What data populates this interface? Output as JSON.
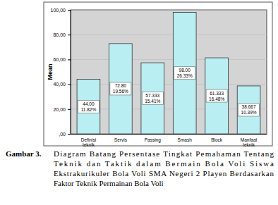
{
  "chart_data": {
    "type": "bar",
    "y_label": "Mean",
    "categories": [
      "Definisi teknik",
      "Servis",
      "Passing",
      "Smash",
      "Block",
      "Manfaat teknik"
    ],
    "values": [
      44.0,
      72.8,
      57.333,
      98.0,
      61.333,
      38.667
    ],
    "value_labels": [
      "44.00",
      "72.80",
      "57.333",
      "98.00",
      "61.333",
      "38.667"
    ],
    "percent_labels": [
      "11.82%",
      "19.56%",
      "15.41%",
      "26.33%",
      "16.48%",
      "10.39%"
    ],
    "color": "#b9eef2",
    "ylim": [
      0,
      100
    ],
    "yticks": [
      {
        "value": 0,
        "label": ",00"
      },
      {
        "value": 20,
        "label": "20,00"
      },
      {
        "value": 40,
        "label": "40,00"
      },
      {
        "value": 60,
        "label": "60,00"
      },
      {
        "value": 80,
        "label": "80,00"
      },
      {
        "value": 100,
        "label": "100,00"
      }
    ],
    "data_labels": true
  },
  "caption": {
    "label": "Gambar 3.",
    "lines": [
      "Diagram Batang Persentase Tingkat Pemahaman Tentang",
      "Teknik dan Taktik dalam Bermain Bola Voli Siswa",
      "Ekstrakurikuler Bola Voli SMA Negeri 2 Playen Berdasarkan",
      "Faktor Teknik Permainan Bola Voli"
    ]
  }
}
